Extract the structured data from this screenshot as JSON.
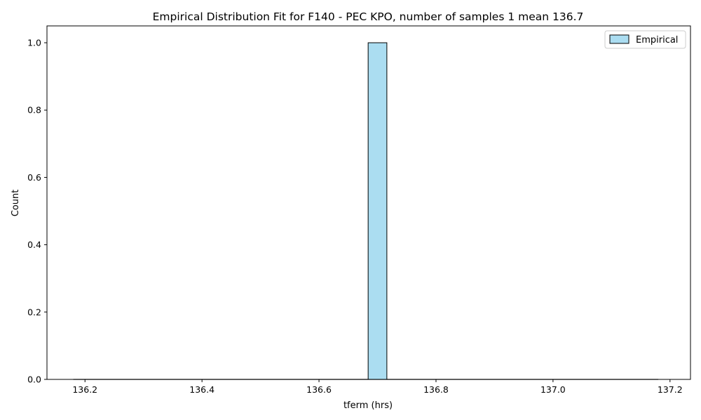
{
  "chart_data": {
    "type": "bar",
    "title": "Empirical Distribution Fit for F140 - PEC KPO, number of samples 1 mean 136.7",
    "xlabel": "tferm (hrs)",
    "ylabel": "Count",
    "xlim": [
      136.135,
      137.235
    ],
    "ylim": [
      0.0,
      1.05
    ],
    "xticks": [
      136.2,
      136.4,
      136.6,
      136.8,
      137.0,
      137.2
    ],
    "xtick_labels": [
      "136.2",
      "136.4",
      "136.6",
      "136.8",
      "137.0",
      "137.2"
    ],
    "yticks": [
      0.0,
      0.2,
      0.4,
      0.6,
      0.8,
      1.0
    ],
    "ytick_labels": [
      "0.0",
      "0.2",
      "0.4",
      "0.6",
      "0.8",
      "1.0"
    ],
    "baseline_range": [
      136.18,
      137.18
    ],
    "bins": [
      {
        "x0": 136.684,
        "x1": 136.716,
        "count": 1
      }
    ],
    "series": [
      {
        "name": "Empirical",
        "color": "#87ceeb",
        "fill_opacity": 0.7,
        "edge_color": "#000000"
      }
    ],
    "legend": {
      "position": "top-right",
      "entries": [
        "Empirical"
      ]
    },
    "grid": false
  }
}
